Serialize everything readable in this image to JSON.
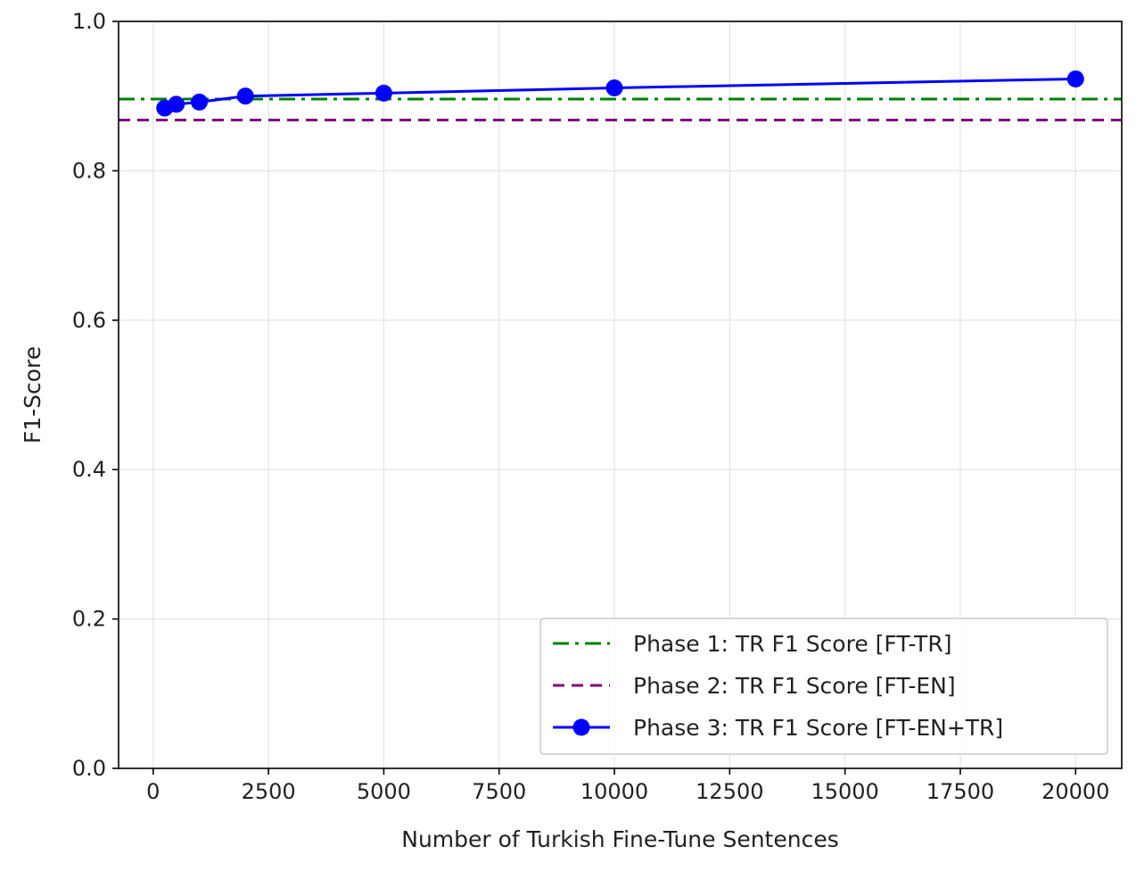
{
  "chart_data": {
    "type": "line",
    "xlabel": "Number of Turkish Fine-Tune Sentences",
    "ylabel": "F1-Score",
    "xlim": [
      -750,
      21000
    ],
    "ylim": [
      0.0,
      1.0
    ],
    "xticks": [
      0,
      2500,
      5000,
      7500,
      10000,
      12500,
      15000,
      17500,
      20000
    ],
    "xtick_labels": [
      "0",
      "2500",
      "5000",
      "7500",
      "10000",
      "12500",
      "15000",
      "17500",
      "20000"
    ],
    "yticks": [
      0.0,
      0.2,
      0.4,
      0.6,
      0.8,
      1.0
    ],
    "ytick_labels": [
      "0.0",
      "0.2",
      "0.4",
      "0.6",
      "0.8",
      "1.0"
    ],
    "grid": true,
    "legend_position": "lower-right",
    "reference_lines": [
      {
        "name": "Phase 1: TR F1 Score [FT-TR]",
        "y": 0.896,
        "color": "#008000",
        "style": "dashdot"
      },
      {
        "name": "Phase 2: TR F1 Score [FT-EN]",
        "y": 0.868,
        "color": "#800080",
        "style": "dashed"
      }
    ],
    "series": [
      {
        "name": "Phase 3: TR F1 Score [FT-EN+TR]",
        "color": "#0000ff",
        "marker": "circle",
        "x": [
          250,
          500,
          1000,
          2000,
          5000,
          10000,
          20000
        ],
        "y": [
          0.884,
          0.889,
          0.892,
          0.9,
          0.904,
          0.911,
          0.923
        ]
      }
    ]
  }
}
